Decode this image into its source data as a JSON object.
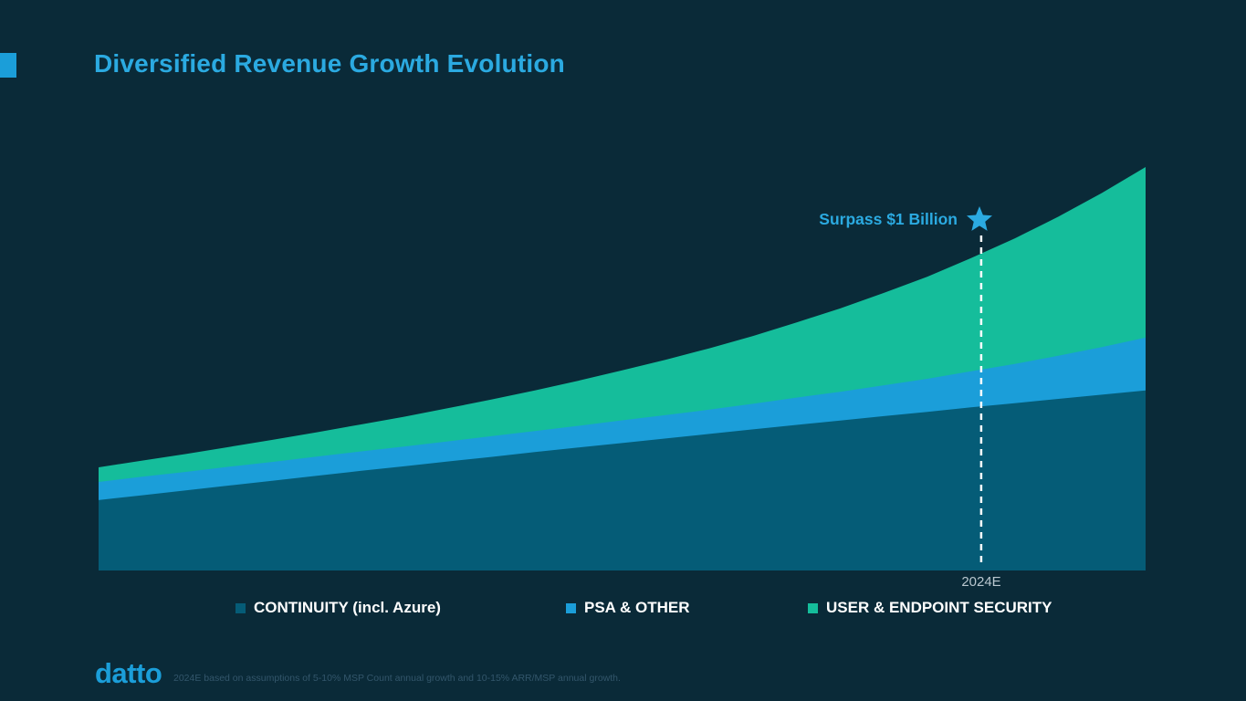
{
  "page": {
    "title": "Diversified Revenue Growth Evolution",
    "logo_text": "datto",
    "footnote": "2024E based on assumptions of 5-10% MSP Count annual growth and 10-15% ARR/MSP annual growth."
  },
  "colors": {
    "background": "#0a2a38",
    "title": "#2baae1",
    "accent_bar": "#1b9ed9",
    "continuity": "#055c77",
    "psa_other": "#1b9ed9",
    "user_endpoint_security": "#15bd9b",
    "annotation_text": "#2baae1",
    "star": "#2baae1",
    "dashed_line": "#ffffff",
    "axis_label": "#b9c7cf",
    "legend_text": "#ffffff",
    "footnote_text": "#33566b"
  },
  "chart_data": {
    "type": "area",
    "stacked": true,
    "title": "Diversified Revenue Growth Evolution",
    "unit": "USD millions (estimated; implied by 'Surpass $1 Billion' marker at 2024E)",
    "x_description": "time, 25 evenly spaced points ending just past 2024E; only the 2024E tick is labeled",
    "grid": false,
    "legend_position": "bottom",
    "series": [
      {
        "name": "CONTINUITY (incl. Azure)",
        "color": "#055c77",
        "values": [
          217,
          232,
          247,
          262,
          277,
          292,
          307,
          321,
          336,
          350,
          365,
          379,
          393,
          407,
          421,
          435,
          449,
          462,
          476,
          489,
          503,
          516,
          529,
          542,
          555
        ]
      },
      {
        "name": "PSA & OTHER",
        "color": "#1b9ed9",
        "values": [
          56,
          57,
          57,
          58,
          58,
          59,
          60,
          61,
          62,
          64,
          65,
          67,
          70,
          72,
          75,
          79,
          84,
          89,
          95,
          102,
          111,
          121,
          133,
          147,
          163
        ]
      },
      {
        "name": "USER & ENDPOINT SECURITY",
        "color": "#15bd9b",
        "values": [
          45,
          50,
          55,
          61,
          68,
          75,
          83,
          92,
          102,
          113,
          125,
          139,
          154,
          171,
          189,
          209,
          232,
          257,
          285,
          315,
          349,
          387,
          429,
          475,
          526
        ]
      }
    ],
    "annotation": {
      "label": "Surpass $1 Billion",
      "axis_label": "2024E",
      "x_fraction": 0.843,
      "total_at_annotation": 1000
    }
  }
}
